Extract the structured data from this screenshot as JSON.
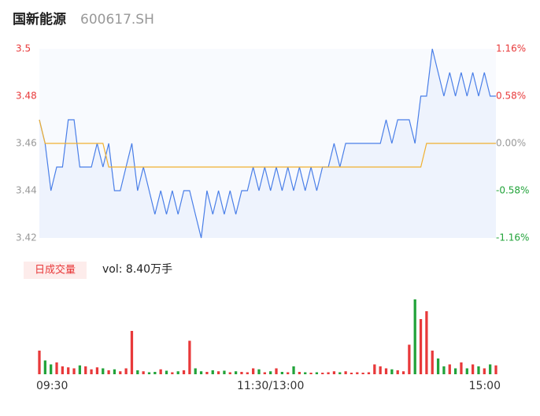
{
  "header": {
    "title": "国新能源",
    "code": "600617.SH"
  },
  "chart_data": {
    "type": "line",
    "x": [
      0,
      1,
      2,
      3,
      4,
      5,
      6,
      7,
      8,
      9,
      10,
      11,
      12,
      13,
      14,
      15,
      16,
      17,
      18,
      19,
      20,
      21,
      22,
      23,
      24,
      25,
      26,
      27,
      28,
      29,
      30,
      31,
      32,
      33,
      34,
      35,
      36,
      37,
      38,
      39,
      40,
      41,
      42,
      43,
      44,
      45,
      46,
      47,
      48,
      49,
      50,
      51,
      52,
      53,
      54,
      55,
      56,
      57,
      58,
      59,
      60,
      61,
      62,
      63,
      64,
      65,
      66,
      67,
      68,
      69,
      70,
      71,
      72,
      73,
      74,
      75,
      76,
      77,
      78,
      79
    ],
    "xlim": [
      0,
      79
    ],
    "xticks": [
      {
        "value": 0,
        "label": "09:30"
      },
      {
        "value": 40,
        "label": "11:30/13:00"
      },
      {
        "value": 79,
        "label": "15:00"
      }
    ],
    "ylim": [
      3.42,
      3.5
    ],
    "yticks": [
      3.5,
      3.48,
      3.46,
      3.44,
      3.42
    ],
    "y2lim": [
      -1.16,
      1.16
    ],
    "y2ticks": [
      {
        "value": 1.16,
        "label": "1.16%"
      },
      {
        "value": 0.58,
        "label": "0.58%"
      },
      {
        "value": 0,
        "label": "0.00%"
      },
      {
        "value": -0.58,
        "label": "-0.58%"
      },
      {
        "value": -1.16,
        "label": "-1.16%"
      }
    ],
    "series": [
      {
        "name": "price",
        "color": "#4a7fe8",
        "values": [
          3.47,
          3.46,
          3.44,
          3.45,
          3.45,
          3.47,
          3.47,
          3.45,
          3.45,
          3.45,
          3.46,
          3.45,
          3.46,
          3.44,
          3.44,
          3.45,
          3.46,
          3.44,
          3.45,
          3.44,
          3.43,
          3.44,
          3.43,
          3.44,
          3.43,
          3.44,
          3.44,
          3.43,
          3.42,
          3.44,
          3.43,
          3.44,
          3.43,
          3.44,
          3.43,
          3.44,
          3.44,
          3.45,
          3.44,
          3.45,
          3.44,
          3.45,
          3.44,
          3.45,
          3.44,
          3.45,
          3.44,
          3.45,
          3.44,
          3.45,
          3.45,
          3.46,
          3.45,
          3.46,
          3.46,
          3.46,
          3.46,
          3.46,
          3.46,
          3.46,
          3.47,
          3.46,
          3.47,
          3.47,
          3.47,
          3.46,
          3.48,
          3.48,
          3.5,
          3.49,
          3.48,
          3.49,
          3.48,
          3.49,
          3.48,
          3.49,
          3.48,
          3.49,
          3.48,
          3.48
        ]
      },
      {
        "name": "avg",
        "color": "#f0b030",
        "values": [
          3.47,
          3.46,
          3.46,
          3.46,
          3.46,
          3.46,
          3.46,
          3.46,
          3.46,
          3.46,
          3.46,
          3.46,
          3.45,
          3.45,
          3.45,
          3.45,
          3.45,
          3.45,
          3.45,
          3.45,
          3.45,
          3.45,
          3.45,
          3.45,
          3.45,
          3.45,
          3.45,
          3.45,
          3.45,
          3.45,
          3.45,
          3.45,
          3.45,
          3.45,
          3.45,
          3.45,
          3.45,
          3.45,
          3.45,
          3.45,
          3.45,
          3.45,
          3.45,
          3.45,
          3.45,
          3.45,
          3.45,
          3.45,
          3.45,
          3.45,
          3.45,
          3.45,
          3.45,
          3.45,
          3.45,
          3.45,
          3.45,
          3.45,
          3.45,
          3.45,
          3.45,
          3.45,
          3.45,
          3.45,
          3.45,
          3.45,
          3.45,
          3.46,
          3.46,
          3.46,
          3.46,
          3.46,
          3.46,
          3.46,
          3.46,
          3.46,
          3.46,
          3.46,
          3.46,
          3.46
        ]
      }
    ],
    "volume": {
      "label": "日成交量",
      "summary": "vol: 8.40万手",
      "up_color": "#e8393a",
      "down_color": "#22a33a",
      "ylim": [
        0,
        4000
      ],
      "values": [
        1200,
        700,
        500,
        600,
        400,
        350,
        300,
        450,
        400,
        250,
        350,
        300,
        200,
        250,
        150,
        300,
        2200,
        200,
        150,
        100,
        120,
        250,
        180,
        100,
        150,
        200,
        1700,
        300,
        150,
        120,
        200,
        150,
        180,
        100,
        150,
        120,
        100,
        300,
        250,
        100,
        150,
        300,
        120,
        100,
        400,
        120,
        100,
        80,
        100,
        80,
        100,
        150,
        100,
        150,
        80,
        100,
        80,
        100,
        500,
        400,
        300,
        250,
        200,
        150,
        1500,
        3800,
        2800,
        3200,
        1200,
        800,
        400,
        500,
        300,
        600,
        300,
        500,
        400,
        300,
        500,
        450
      ]
    }
  }
}
